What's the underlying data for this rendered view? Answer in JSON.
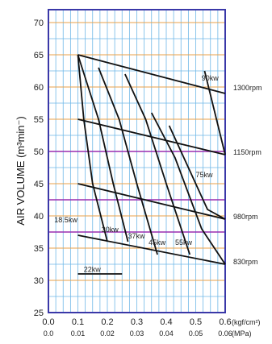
{
  "chart_data": {
    "type": "line",
    "title": "",
    "xlabel": "",
    "ylabel": "AIR VOLUME (m³min⁻)",
    "ylim": [
      25,
      72
    ],
    "xlim": [
      0.0,
      0.6
    ],
    "x_ticks_kgf": [
      "0.0",
      "0.1",
      "0.2",
      "0.3",
      "0.4",
      "0.5",
      "0.6"
    ],
    "x_unit_kgf": "(kgf/cm²)",
    "x_ticks_mpa": [
      "0.0",
      "0.01",
      "0.02",
      "0.03",
      "0.04",
      "0.05",
      "0.06"
    ],
    "x_unit_mpa": "(MPa)",
    "y_ticks": [
      "25",
      "30",
      "35",
      "40",
      "45",
      "50",
      "55",
      "60",
      "65",
      "70"
    ],
    "grid": true,
    "speed_lines": [
      {
        "label": "1300rpm",
        "y_at_label": 60,
        "points": [
          [
            0.1,
            65
          ],
          [
            0.6,
            59
          ]
        ]
      },
      {
        "label": "1150rpm",
        "y_at_label": 50,
        "points": [
          [
            0.1,
            55
          ],
          [
            0.6,
            49.5
          ]
        ]
      },
      {
        "label": "980rpm",
        "y_at_label": 40,
        "points": [
          [
            0.1,
            45
          ],
          [
            0.6,
            39.5
          ]
        ]
      },
      {
        "label": "830rpm",
        "y_at_label": 33,
        "points": [
          [
            0.1,
            37
          ],
          [
            0.6,
            32.5
          ]
        ]
      }
    ],
    "power_lines": [
      {
        "label": "22kw",
        "points": [
          [
            0.1,
            31
          ],
          [
            0.25,
            31
          ]
        ]
      },
      {
        "label": "18.5kw",
        "points": [
          [
            0.1,
            65
          ],
          [
            0.12,
            55
          ],
          [
            0.15,
            45
          ],
          [
            0.2,
            36
          ]
        ]
      },
      {
        "label": "30kw",
        "points": [
          [
            0.1,
            65
          ],
          [
            0.17,
            55
          ],
          [
            0.22,
            45
          ],
          [
            0.27,
            36
          ]
        ]
      },
      {
        "label": "37kw",
        "points": [
          [
            0.17,
            63
          ],
          [
            0.24,
            55
          ],
          [
            0.3,
            45
          ],
          [
            0.37,
            34
          ]
        ]
      },
      {
        "label": "45kw",
        "points": [
          [
            0.26,
            62
          ],
          [
            0.33,
            55
          ],
          [
            0.4,
            45
          ],
          [
            0.48,
            34
          ]
        ]
      },
      {
        "label": "55kw",
        "points": [
          [
            0.35,
            56
          ],
          [
            0.43,
            49
          ],
          [
            0.52,
            38
          ],
          [
            0.6,
            32.5
          ]
        ]
      },
      {
        "label": "75kw",
        "points": [
          [
            0.41,
            54
          ],
          [
            0.48,
            47
          ],
          [
            0.54,
            41
          ],
          [
            0.6,
            39.5
          ]
        ]
      },
      {
        "label": "90kw",
        "points": [
          [
            0.53,
            62.5
          ],
          [
            0.6,
            49.5
          ]
        ]
      }
    ],
    "colors": {
      "frame": "#3a38a8",
      "grid_light": "#6fb8e8",
      "grid_orange": "#e8a24a",
      "grid_purple": "#9a2fb0",
      "curve": "#111111"
    }
  }
}
